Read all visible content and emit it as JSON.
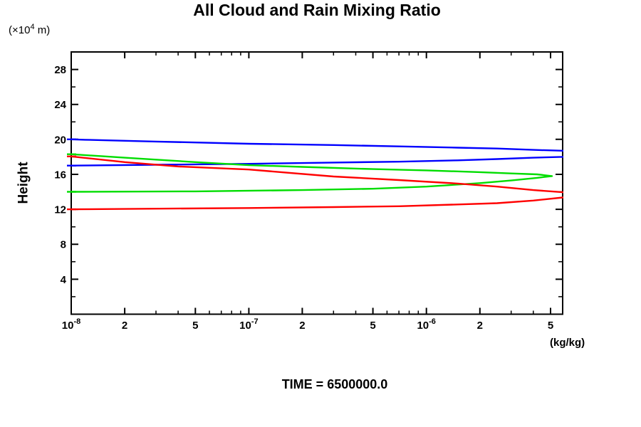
{
  "chart_data": {
    "type": "line",
    "title": "All Cloud and Rain Mixing Ratio",
    "ylabel": "Height",
    "y_unit": {
      "pre": "(×10",
      "exp": "4",
      "post": " m)"
    },
    "xlabel": "(kg/kg)",
    "caption": "TIME = 6500000.0",
    "x_scale": "log",
    "xlim": [
      1e-08,
      5.85e-06
    ],
    "ylim": [
      0,
      30
    ],
    "grid": false,
    "legend": "none",
    "x_ticks": [
      {
        "v": 1e-08,
        "base": "10",
        "exp": "-8"
      },
      {
        "v": 2e-08,
        "base": "2"
      },
      {
        "v": 5e-08,
        "base": "5"
      },
      {
        "v": 1e-07,
        "base": "10",
        "exp": "-7"
      },
      {
        "v": 2e-07,
        "base": "2"
      },
      {
        "v": 5e-07,
        "base": "5"
      },
      {
        "v": 1e-06,
        "base": "10",
        "exp": "-6"
      },
      {
        "v": 2e-06,
        "base": "2"
      },
      {
        "v": 5e-06,
        "base": "5"
      }
    ],
    "x_minor_ticks": [
      3e-08,
      4e-08,
      6e-08,
      7e-08,
      8e-08,
      9e-08,
      3e-07,
      4e-07,
      6e-07,
      7e-07,
      8e-07,
      9e-07,
      3e-06,
      4e-06
    ],
    "y_major_ticks": [
      4,
      8,
      12,
      16,
      20,
      24,
      28
    ],
    "y_minor_ticks": [
      2,
      6,
      10,
      14,
      18,
      22,
      26
    ],
    "series": [
      {
        "name": "blue-profile",
        "color": "#0000ff",
        "points": [
          [
            1e-08,
            17.0
          ],
          [
            3e-08,
            17.1
          ],
          [
            1e-07,
            17.2
          ],
          [
            3e-07,
            17.35
          ],
          [
            7e-07,
            17.45
          ],
          [
            1.5e-06,
            17.6
          ],
          [
            2.5e-06,
            17.75
          ],
          [
            4e-06,
            17.9
          ],
          [
            5.85e-06,
            18.0
          ],
          [
            8e-06,
            18.35
          ],
          [
            5.85e-06,
            18.7
          ],
          [
            4e-06,
            18.8
          ],
          [
            2.5e-06,
            18.95
          ],
          [
            1.5e-06,
            19.05
          ],
          [
            7e-07,
            19.2
          ],
          [
            3e-07,
            19.35
          ],
          [
            1e-07,
            19.5
          ],
          [
            3e-08,
            19.75
          ],
          [
            1.2e-08,
            19.95
          ],
          [
            1e-08,
            20.0
          ]
        ]
      },
      {
        "name": "green-profile",
        "color": "#00dd00",
        "points": [
          [
            1e-08,
            14.0
          ],
          [
            5e-08,
            14.05
          ],
          [
            2e-07,
            14.2
          ],
          [
            5e-07,
            14.35
          ],
          [
            1e-06,
            14.6
          ],
          [
            2e-06,
            15.0
          ],
          [
            3e-06,
            15.3
          ],
          [
            4.2e-06,
            15.6
          ],
          [
            5.1e-06,
            15.8
          ],
          [
            4.2e-06,
            16.0
          ],
          [
            3e-06,
            16.1
          ],
          [
            2e-06,
            16.25
          ],
          [
            1e-06,
            16.45
          ],
          [
            5e-07,
            16.6
          ],
          [
            2e-07,
            16.85
          ],
          [
            1e-07,
            17.05
          ],
          [
            5e-08,
            17.4
          ],
          [
            2e-08,
            17.9
          ],
          [
            1e-08,
            18.3
          ]
        ]
      },
      {
        "name": "red-profile",
        "color": "#ff0000",
        "points": [
          [
            1e-08,
            12.0
          ],
          [
            1e-07,
            12.15
          ],
          [
            3e-07,
            12.25
          ],
          [
            7e-07,
            12.35
          ],
          [
            1.5e-06,
            12.55
          ],
          [
            2.5e-06,
            12.7
          ],
          [
            4e-06,
            13.0
          ],
          [
            5.85e-06,
            13.35
          ],
          [
            8e-06,
            13.65
          ],
          [
            5.85e-06,
            13.95
          ],
          [
            4e-06,
            14.2
          ],
          [
            2.5e-06,
            14.6
          ],
          [
            1.5e-06,
            14.95
          ],
          [
            7e-07,
            15.35
          ],
          [
            3e-07,
            15.75
          ],
          [
            1e-07,
            16.55
          ],
          [
            4e-08,
            16.9
          ],
          [
            2e-08,
            17.4
          ],
          [
            1e-08,
            18.05
          ]
        ]
      }
    ]
  }
}
